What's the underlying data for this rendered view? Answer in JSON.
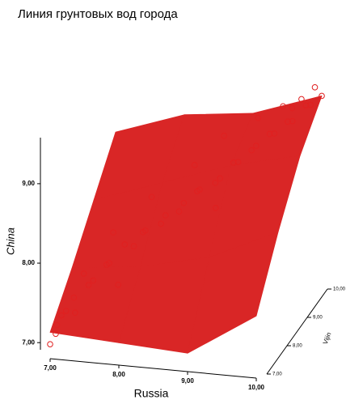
{
  "chart_data": {
    "type": "surface3d",
    "title": "Линия грунтовых вод города",
    "x_label": "Russia",
    "y_label": "China",
    "z_label": "Vijin",
    "xlim": [
      7,
      10
    ],
    "xticks": [
      {
        "value": 7,
        "label": "7,00"
      },
      {
        "value": 8,
        "label": "8,00"
      },
      {
        "value": 9,
        "label": "9,00"
      },
      {
        "value": 10,
        "label": "10,00"
      }
    ],
    "ylim": [
      6.9,
      9.6
    ],
    "yticks": [
      {
        "value": 7,
        "label": "7,00"
      },
      {
        "value": 8,
        "label": "8,00"
      },
      {
        "value": 9,
        "label": "9,00"
      }
    ],
    "zlim": [
      7,
      10
    ],
    "zticks": [
      {
        "value": 7,
        "label": "7,00"
      },
      {
        "value": 8,
        "label": "8,00"
      },
      {
        "value": 9,
        "label": "9,00"
      },
      {
        "value": 10,
        "label": "10,00"
      }
    ],
    "surface": {
      "color": "#d92626",
      "x": [
        7,
        8,
        9,
        10
      ],
      "z": [
        7,
        8,
        9,
        10
      ],
      "y": [
        [
          7.15,
          7.1,
          7.05,
          7.6
        ],
        [
          7.6,
          7.7,
          7.9,
          8.3
        ],
        [
          8.1,
          8.4,
          8.7,
          8.9
        ],
        [
          8.6,
          8.9,
          9.0,
          9.3
        ]
      ]
    },
    "points": {
      "color": "#e02020",
      "x": [
        7.0,
        7.05,
        7.1,
        7.1,
        7.2,
        7.25,
        7.3,
        7.4,
        7.5,
        7.6,
        7.7,
        7.8,
        7.9,
        8.0,
        8.1,
        8.2,
        8.3,
        8.4,
        8.5,
        8.6,
        8.7,
        8.8,
        8.9,
        9.0,
        9.1,
        9.2,
        9.3,
        9.4,
        9.5,
        9.6,
        9.7,
        9.8,
        9.9,
        10.0,
        9.9,
        9.8,
        9.6,
        8.5,
        8.0,
        7.6,
        9.2,
        7.3,
        8.8,
        9.5,
        7.8,
        8.9
      ],
      "z": [
        7.0,
        7.1,
        7.0,
        7.2,
        7.1,
        7.3,
        7.2,
        7.5,
        7.4,
        7.7,
        7.5,
        7.9,
        8.0,
        8.1,
        7.9,
        8.3,
        8.2,
        8.5,
        8.4,
        8.7,
        8.5,
        8.9,
        8.8,
        9.1,
        9.0,
        9.3,
        9.2,
        9.5,
        9.4,
        9.7,
        9.6,
        9.9,
        9.8,
        10.0,
        10.0,
        9.7,
        9.9,
        8.9,
        8.5,
        8.0,
        9.6,
        7.6,
        9.3,
        9.8,
        7.6,
        8.6
      ],
      "y": [
        7.0,
        7.1,
        7.25,
        7.3,
        7.4,
        7.5,
        7.35,
        7.6,
        7.7,
        7.8,
        7.9,
        8.0,
        7.95,
        8.1,
        8.2,
        8.15,
        8.3,
        8.25,
        8.4,
        8.45,
        8.55,
        8.5,
        8.6,
        8.7,
        8.75,
        8.8,
        8.9,
        8.95,
        9.0,
        9.05,
        9.1,
        9.2,
        9.25,
        9.3,
        9.4,
        9.35,
        9.15,
        8.7,
        8.4,
        8.1,
        9.1,
        7.7,
        8.95,
        9.2,
        7.6,
        8.3
      ]
    }
  }
}
